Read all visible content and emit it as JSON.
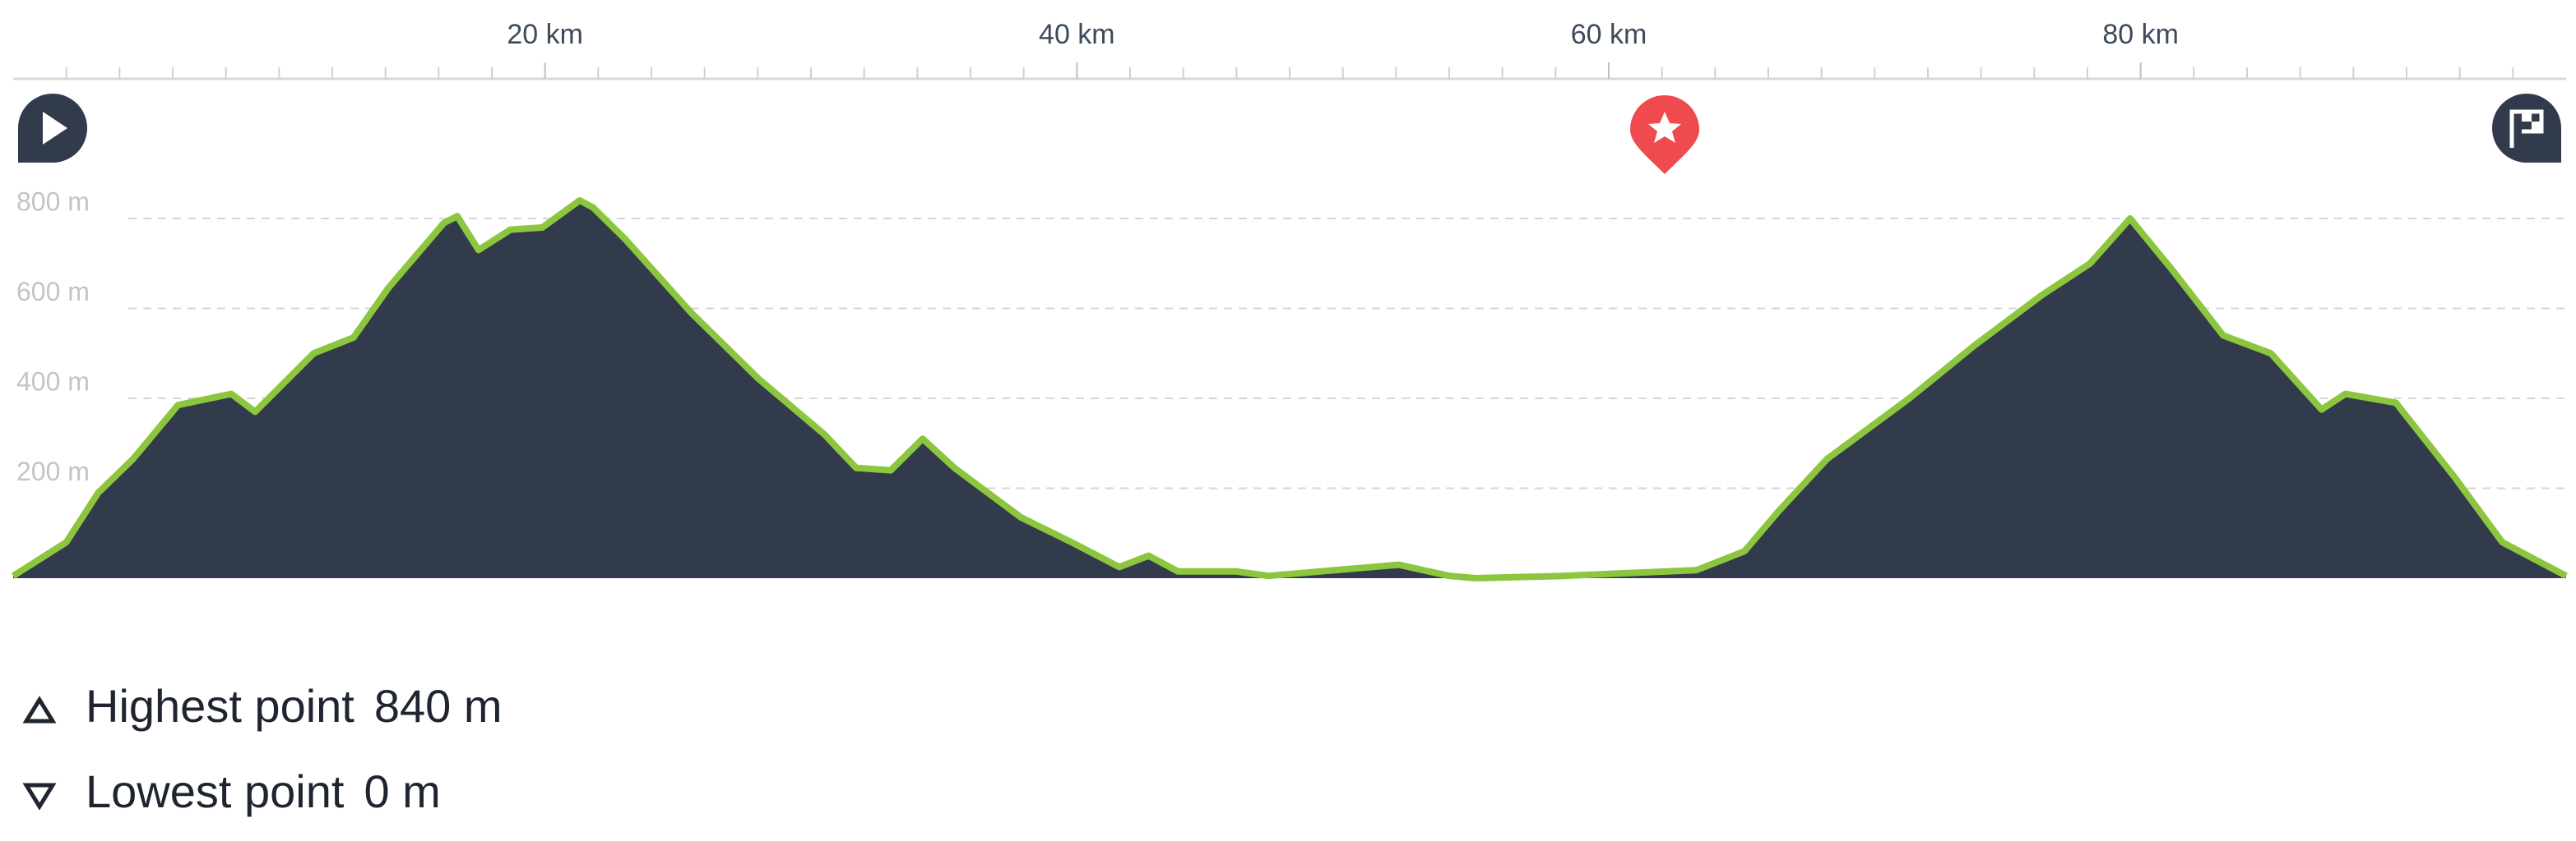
{
  "chart_data": {
    "type": "area",
    "x": [
      0,
      2,
      3.2,
      4.5,
      6.2,
      8.2,
      9.1,
      11.3,
      12.8,
      14.1,
      16.2,
      16.7,
      17.5,
      18.7,
      19.9,
      21.3,
      21.8,
      23,
      25.5,
      28,
      30.5,
      31.7,
      33,
      34.2,
      35.4,
      37.9,
      39.8,
      41.6,
      42.7,
      43.8,
      46,
      47.2,
      52.1,
      54,
      55,
      58.3,
      63.3,
      65.1,
      66.4,
      68.2,
      71.3,
      73.8,
      76.3,
      78.1,
      79.6,
      81.2,
      83.1,
      84.9,
      86.8,
      87.7,
      89.6,
      91.8,
      93.6,
      96
    ],
    "values": [
      5,
      80,
      190,
      265,
      385,
      410,
      370,
      500,
      535,
      645,
      790,
      805,
      730,
      775,
      780,
      840,
      825,
      755,
      590,
      445,
      320,
      245,
      240,
      310,
      245,
      135,
      80,
      25,
      50,
      15,
      15,
      5,
      30,
      5,
      0,
      5,
      18,
      60,
      150,
      265,
      400,
      520,
      630,
      700,
      800,
      685,
      540,
      500,
      375,
      410,
      390,
      225,
      80,
      5
    ],
    "color": "#8cc63f",
    "fill": "#323b4c",
    "xlim": [
      0,
      96
    ],
    "ylim": [
      0,
      800
    ],
    "xticks": [
      {
        "value": 20,
        "label": "20 km"
      },
      {
        "value": 40,
        "label": "40 km"
      },
      {
        "value": 60,
        "label": "60 km"
      },
      {
        "value": 80,
        "label": "80 km"
      }
    ],
    "xminorticks": [
      2,
      4,
      6,
      8,
      10,
      12,
      14,
      16,
      18,
      22,
      24,
      26,
      28,
      30,
      32,
      34,
      36,
      38,
      42,
      44,
      46,
      48,
      50,
      52,
      54,
      56,
      58,
      62,
      64,
      66,
      68,
      70,
      72,
      74,
      76,
      78,
      82,
      84,
      86,
      88,
      90,
      92,
      94
    ],
    "yticks": [
      {
        "value": 200,
        "label": "200 m"
      },
      {
        "value": 400,
        "label": "400 m"
      },
      {
        "value": 600,
        "label": "600 m"
      },
      {
        "value": 800,
        "label": "800 m"
      }
    ],
    "grid": true,
    "stats": [
      {
        "label": "Highest point",
        "value": "840 m"
      },
      {
        "label": "Lowest point",
        "value": "0 m"
      }
    ]
  }
}
